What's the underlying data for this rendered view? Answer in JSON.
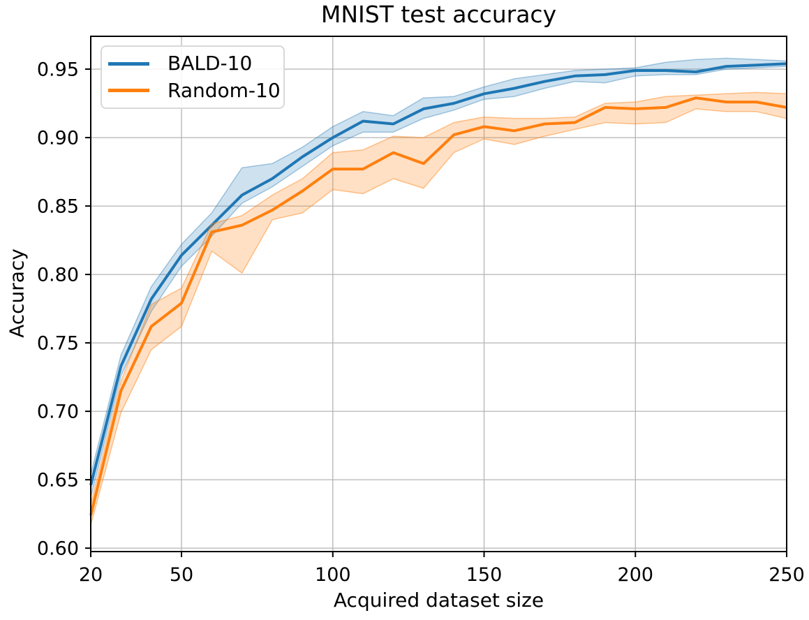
{
  "chart_data": {
    "type": "line",
    "title": "MNIST test accuracy",
    "xlabel": "Acquired dataset size",
    "ylabel": "Accuracy",
    "grid": true,
    "grid_color": "#b4b4b4",
    "axis_color": "#000000",
    "background_color": "#ffffff",
    "legend_position": "upper left",
    "xlim": [
      20,
      250
    ],
    "ylim": [
      0.5975,
      0.974
    ],
    "xticks": [
      20,
      50,
      100,
      150,
      200,
      250
    ],
    "xtick_labels": [
      "20",
      "50",
      "100",
      "150",
      "200",
      "250"
    ],
    "yticks": [
      0.6,
      0.65,
      0.7,
      0.75,
      0.8,
      0.85,
      0.9,
      0.95
    ],
    "ytick_labels": [
      "0.60",
      "0.65",
      "0.70",
      "0.75",
      "0.80",
      "0.85",
      "0.90",
      "0.95"
    ],
    "x": [
      20,
      30,
      40,
      50,
      60,
      70,
      80,
      90,
      100,
      110,
      120,
      130,
      140,
      150,
      160,
      170,
      180,
      190,
      200,
      210,
      220,
      230,
      240,
      250
    ],
    "series": [
      {
        "name": "BALD-10",
        "color": "#1f77b4",
        "band_fill": "rgba(31,119,180,0.22)",
        "band_edge": "rgba(31,119,180,0.38)",
        "values": [
          0.646,
          0.733,
          0.782,
          0.814,
          0.836,
          0.858,
          0.87,
          0.886,
          0.9,
          0.912,
          0.91,
          0.921,
          0.925,
          0.932,
          0.936,
          0.941,
          0.945,
          0.946,
          0.949,
          0.949,
          0.948,
          0.952,
          0.953,
          0.954
        ],
        "band_low": [
          0.637,
          0.726,
          0.773,
          0.806,
          0.828,
          0.852,
          0.864,
          0.879,
          0.894,
          0.904,
          0.904,
          0.914,
          0.92,
          0.928,
          0.93,
          0.936,
          0.941,
          0.94,
          0.945,
          0.946,
          0.946,
          0.95,
          0.951,
          0.952
        ],
        "band_high": [
          0.654,
          0.741,
          0.791,
          0.822,
          0.845,
          0.878,
          0.881,
          0.893,
          0.908,
          0.919,
          0.916,
          0.929,
          0.93,
          0.937,
          0.943,
          0.946,
          0.949,
          0.95,
          0.951,
          0.955,
          0.957,
          0.958,
          0.957,
          0.956
        ]
      },
      {
        "name": "Random-10",
        "color": "#ff7f0e",
        "band_fill": "rgba(255,127,14,0.24)",
        "band_edge": "rgba(255,127,14,0.45)",
        "values": [
          0.624,
          0.715,
          0.762,
          0.779,
          0.831,
          0.836,
          0.847,
          0.861,
          0.877,
          0.877,
          0.889,
          0.881,
          0.902,
          0.908,
          0.905,
          0.91,
          0.911,
          0.922,
          0.921,
          0.922,
          0.929,
          0.926,
          0.926,
          0.922
        ],
        "band_low": [
          0.617,
          0.699,
          0.745,
          0.762,
          0.817,
          0.801,
          0.84,
          0.845,
          0.862,
          0.859,
          0.87,
          0.863,
          0.889,
          0.899,
          0.895,
          0.901,
          0.906,
          0.911,
          0.91,
          0.911,
          0.921,
          0.919,
          0.919,
          0.914
        ],
        "band_high": [
          0.632,
          0.722,
          0.778,
          0.79,
          0.837,
          0.843,
          0.858,
          0.87,
          0.889,
          0.891,
          0.901,
          0.9,
          0.911,
          0.915,
          0.914,
          0.914,
          0.915,
          0.925,
          0.926,
          0.93,
          0.931,
          0.932,
          0.933,
          0.932
        ]
      }
    ]
  }
}
